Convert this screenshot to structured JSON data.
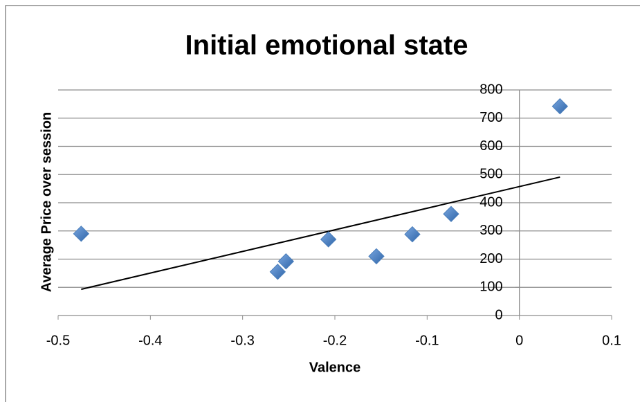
{
  "chart_data": {
    "type": "scatter",
    "title": "Initial emotional state",
    "x_label": "Valence",
    "y_label": "Average Price over session",
    "series": [
      {
        "name": "Average Price",
        "color": "#4a7ebb",
        "x": [
          -0.475,
          -0.262,
          -0.253,
          -0.207,
          -0.155,
          -0.116,
          -0.074,
          0.044
        ],
        "values": [
          290,
          155,
          192,
          270,
          210,
          288,
          360,
          742
        ]
      }
    ],
    "trendline": {
      "color": "#000000",
      "x": [
        -0.475,
        0.044
      ],
      "values": [
        93,
        491
      ]
    },
    "xlim": [
      -0.5,
      0.1
    ],
    "xticks": [
      -0.5,
      -0.4,
      -0.3,
      -0.2,
      -0.1,
      0,
      0.1
    ],
    "ylim": [
      0,
      800
    ],
    "yticks": [
      0,
      100,
      200,
      300,
      400,
      500,
      600,
      700,
      800
    ],
    "grid": true
  }
}
